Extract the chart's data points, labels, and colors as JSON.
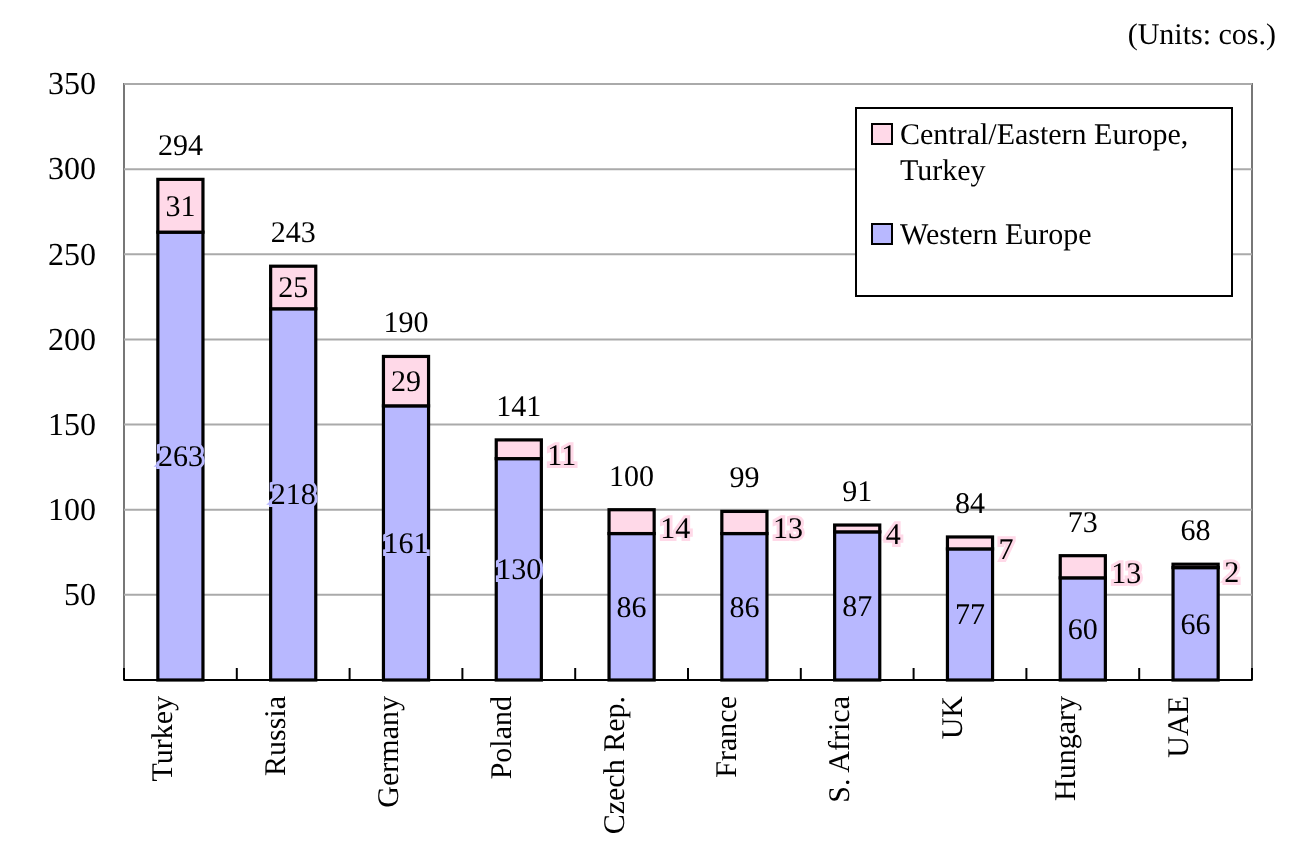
{
  "chart_data": {
    "type": "bar",
    "stacked": true,
    "categories": [
      "Turkey",
      "Russia",
      "Germany",
      "Poland",
      "Czech Rep.",
      "France",
      "S. Africa",
      "UK",
      "Hungary",
      "UAE"
    ],
    "series": [
      {
        "name": "Western Europe",
        "color": "#b8b8ff",
        "values": [
          263,
          218,
          161,
          130,
          86,
          86,
          87,
          77,
          60,
          66
        ]
      },
      {
        "name": "Central/Eastern Europe, Turkey",
        "color": "#ffd9e8",
        "values": [
          31,
          25,
          29,
          11,
          14,
          13,
          4,
          7,
          13,
          2
        ]
      }
    ],
    "totals": [
      "294",
      "243",
      "190",
      "141",
      "100",
      "99",
      "91",
      "84",
      "73",
      "68"
    ],
    "data_labels": true,
    "ylim": [
      0,
      350
    ],
    "yticks": [
      50,
      100,
      150,
      200,
      250,
      300,
      350
    ],
    "grid": "y",
    "legend": "top right",
    "annotations": [
      "(Units: cos.)"
    ]
  }
}
